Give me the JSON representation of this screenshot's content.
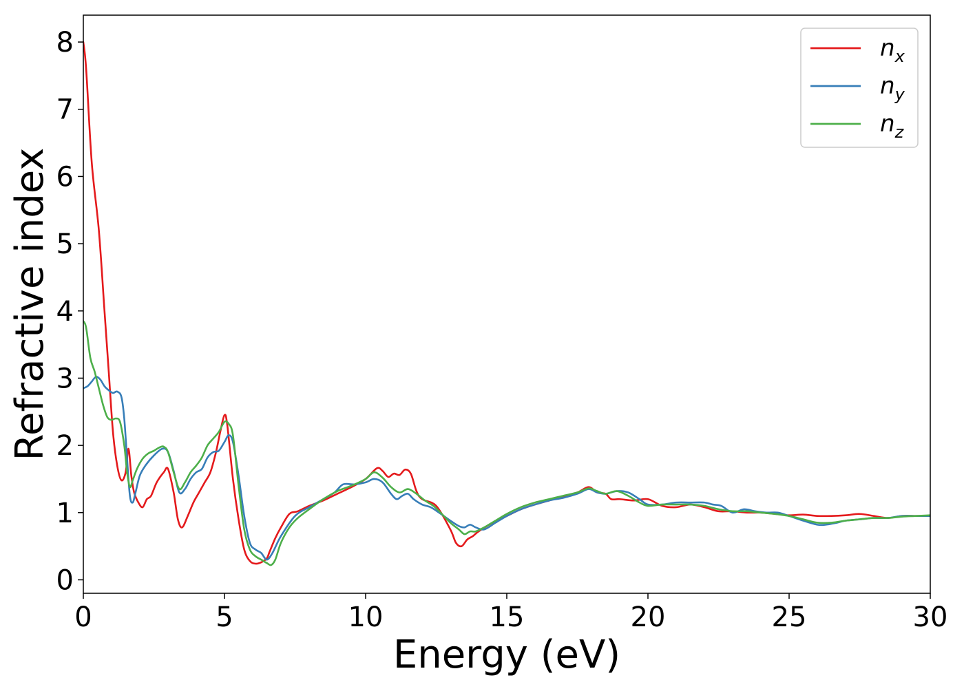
{
  "chart_data": {
    "type": "line",
    "title": "",
    "xlabel": "Energy (eV)",
    "ylabel": "Refractive index",
    "xlim": [
      0,
      30
    ],
    "ylim": [
      -0.2,
      8.4
    ],
    "xticks": [
      0,
      5,
      10,
      15,
      20,
      25,
      30
    ],
    "yticks": [
      0,
      1,
      2,
      3,
      4,
      5,
      6,
      7,
      8
    ],
    "grid": false,
    "legend_position": "top-right",
    "series": [
      {
        "name": "n",
        "subscript": "x",
        "color": "#e41a1c",
        "x": [
          0,
          0.1,
          0.3,
          0.55,
          0.75,
          0.9,
          1.05,
          1.2,
          1.35,
          1.5,
          1.6,
          1.7,
          1.8,
          1.95,
          2.1,
          2.25,
          2.4,
          2.6,
          2.85,
          3.0,
          3.2,
          3.35,
          3.5,
          3.7,
          3.9,
          4.1,
          4.3,
          4.5,
          4.7,
          4.85,
          5.0,
          5.1,
          5.3,
          5.5,
          5.7,
          5.9,
          6.1,
          6.3,
          6.5,
          6.6,
          6.8,
          7.0,
          7.3,
          7.6,
          8.0,
          8.5,
          9.0,
          9.5,
          10.0,
          10.4,
          10.6,
          10.8,
          11.0,
          11.2,
          11.4,
          11.6,
          11.8,
          12.0,
          12.5,
          13.0,
          13.2,
          13.4,
          13.6,
          13.8,
          14.0,
          14.5,
          15.0,
          15.5,
          16.0,
          16.5,
          17.0,
          17.5,
          17.9,
          18.2,
          18.5,
          18.7,
          19.0,
          19.5,
          20.0,
          20.5,
          21.0,
          21.5,
          22.0,
          22.5,
          23.0,
          23.5,
          24.0,
          24.5,
          25.0,
          25.5,
          26.0,
          26.5,
          27.0,
          27.5,
          28.0,
          28.5,
          29.0,
          29.5,
          30.0
        ],
        "y": [
          8.0,
          7.6,
          6.2,
          5.2,
          4.0,
          3.1,
          2.2,
          1.7,
          1.48,
          1.6,
          1.95,
          1.55,
          1.3,
          1.15,
          1.08,
          1.2,
          1.25,
          1.45,
          1.6,
          1.65,
          1.3,
          0.9,
          0.78,
          0.95,
          1.15,
          1.3,
          1.45,
          1.6,
          1.9,
          2.2,
          2.45,
          2.3,
          1.5,
          0.9,
          0.45,
          0.28,
          0.24,
          0.26,
          0.32,
          0.42,
          0.62,
          0.78,
          0.98,
          1.02,
          1.1,
          1.18,
          1.28,
          1.38,
          1.5,
          1.66,
          1.62,
          1.53,
          1.58,
          1.56,
          1.64,
          1.58,
          1.32,
          1.2,
          1.1,
          0.75,
          0.55,
          0.5,
          0.6,
          0.65,
          0.72,
          0.85,
          0.95,
          1.05,
          1.12,
          1.18,
          1.24,
          1.3,
          1.38,
          1.3,
          1.28,
          1.2,
          1.2,
          1.18,
          1.2,
          1.1,
          1.08,
          1.12,
          1.08,
          1.02,
          1.02,
          1.0,
          1.0,
          0.98,
          0.96,
          0.97,
          0.95,
          0.95,
          0.96,
          0.98,
          0.95,
          0.92,
          0.95,
          0.95,
          0.95
        ]
      },
      {
        "name": "n",
        "subscript": "y",
        "color": "#377eb8",
        "x": [
          0,
          0.15,
          0.3,
          0.45,
          0.6,
          0.75,
          0.9,
          1.05,
          1.2,
          1.35,
          1.45,
          1.55,
          1.65,
          1.75,
          1.85,
          2.0,
          2.2,
          2.5,
          2.8,
          3.0,
          3.2,
          3.4,
          3.6,
          3.8,
          4.0,
          4.2,
          4.4,
          4.6,
          4.8,
          5.0,
          5.15,
          5.3,
          5.5,
          5.7,
          5.9,
          6.1,
          6.3,
          6.5,
          6.7,
          7.0,
          7.5,
          8.0,
          8.5,
          8.9,
          9.2,
          9.6,
          10.0,
          10.3,
          10.6,
          10.9,
          11.1,
          11.3,
          11.5,
          11.7,
          12.0,
          12.3,
          12.6,
          13.0,
          13.3,
          13.5,
          13.7,
          13.9,
          14.2,
          14.6,
          15.0,
          15.5,
          16.0,
          16.5,
          17.0,
          17.5,
          17.9,
          18.2,
          18.5,
          18.9,
          19.3,
          19.7,
          20.0,
          20.5,
          21.0,
          21.5,
          22.0,
          22.3,
          22.6,
          23.0,
          23.4,
          23.8,
          24.2,
          24.6,
          25.0,
          25.5,
          26.0,
          26.3,
          26.7,
          27.0,
          27.5,
          28.0,
          28.5,
          29.0,
          29.5,
          30.0
        ],
        "y": [
          2.85,
          2.88,
          2.95,
          3.02,
          2.98,
          2.88,
          2.82,
          2.78,
          2.8,
          2.72,
          2.4,
          1.8,
          1.25,
          1.15,
          1.3,
          1.55,
          1.7,
          1.85,
          1.95,
          1.9,
          1.62,
          1.3,
          1.35,
          1.5,
          1.6,
          1.65,
          1.82,
          1.9,
          1.92,
          2.05,
          2.15,
          2.05,
          1.55,
          0.95,
          0.55,
          0.45,
          0.4,
          0.3,
          0.4,
          0.65,
          0.95,
          1.08,
          1.2,
          1.3,
          1.42,
          1.42,
          1.45,
          1.5,
          1.45,
          1.28,
          1.2,
          1.25,
          1.28,
          1.2,
          1.12,
          1.08,
          1.0,
          0.88,
          0.8,
          0.78,
          0.82,
          0.78,
          0.75,
          0.85,
          0.95,
          1.05,
          1.12,
          1.18,
          1.22,
          1.28,
          1.35,
          1.3,
          1.28,
          1.32,
          1.3,
          1.2,
          1.12,
          1.12,
          1.15,
          1.15,
          1.15,
          1.12,
          1.1,
          1.0,
          1.05,
          1.02,
          1.0,
          1.0,
          0.95,
          0.88,
          0.82,
          0.82,
          0.85,
          0.88,
          0.9,
          0.92,
          0.92,
          0.95,
          0.95,
          0.95
        ]
      },
      {
        "name": "n",
        "subscript": "z",
        "color": "#4daf4a",
        "x": [
          0,
          0.1,
          0.25,
          0.4,
          0.55,
          0.7,
          0.85,
          1.0,
          1.15,
          1.3,
          1.45,
          1.55,
          1.65,
          1.75,
          1.9,
          2.1,
          2.3,
          2.5,
          2.7,
          2.85,
          3.0,
          3.2,
          3.4,
          3.6,
          3.8,
          4.0,
          4.2,
          4.4,
          4.6,
          4.8,
          5.0,
          5.15,
          5.3,
          5.5,
          5.7,
          5.9,
          6.1,
          6.3,
          6.5,
          6.65,
          6.8,
          7.0,
          7.3,
          7.6,
          8.0,
          8.5,
          9.0,
          9.5,
          10.0,
          10.3,
          10.6,
          10.9,
          11.2,
          11.5,
          11.8,
          12.1,
          12.4,
          12.7,
          13.0,
          13.3,
          13.5,
          13.7,
          13.9,
          14.2,
          14.6,
          15.0,
          15.5,
          16.0,
          16.5,
          17.0,
          17.5,
          17.9,
          18.2,
          18.5,
          18.9,
          19.3,
          19.7,
          20.0,
          20.5,
          21.0,
          21.5,
          22.0,
          22.5,
          23.0,
          23.5,
          24.0,
          24.5,
          25.0,
          25.5,
          26.0,
          26.5,
          27.0,
          27.5,
          28.0,
          28.5,
          29.0,
          29.5,
          30.0
        ],
        "y": [
          3.85,
          3.75,
          3.3,
          3.1,
          2.85,
          2.6,
          2.42,
          2.38,
          2.4,
          2.35,
          2.0,
          1.6,
          1.38,
          1.48,
          1.65,
          1.8,
          1.88,
          1.92,
          1.97,
          1.98,
          1.9,
          1.6,
          1.35,
          1.45,
          1.6,
          1.7,
          1.82,
          2.0,
          2.1,
          2.2,
          2.35,
          2.32,
          2.15,
          1.4,
          0.75,
          0.45,
          0.35,
          0.3,
          0.25,
          0.22,
          0.3,
          0.55,
          0.78,
          0.92,
          1.05,
          1.2,
          1.32,
          1.4,
          1.5,
          1.6,
          1.52,
          1.38,
          1.3,
          1.35,
          1.28,
          1.18,
          1.1,
          0.98,
          0.85,
          0.75,
          0.68,
          0.72,
          0.72,
          0.78,
          0.88,
          0.98,
          1.08,
          1.15,
          1.2,
          1.25,
          1.3,
          1.36,
          1.32,
          1.28,
          1.32,
          1.25,
          1.15,
          1.1,
          1.12,
          1.12,
          1.12,
          1.1,
          1.05,
          1.02,
          1.02,
          1.0,
          0.98,
          0.95,
          0.9,
          0.85,
          0.85,
          0.88,
          0.9,
          0.92,
          0.92,
          0.94,
          0.95,
          0.96
        ]
      }
    ]
  }
}
